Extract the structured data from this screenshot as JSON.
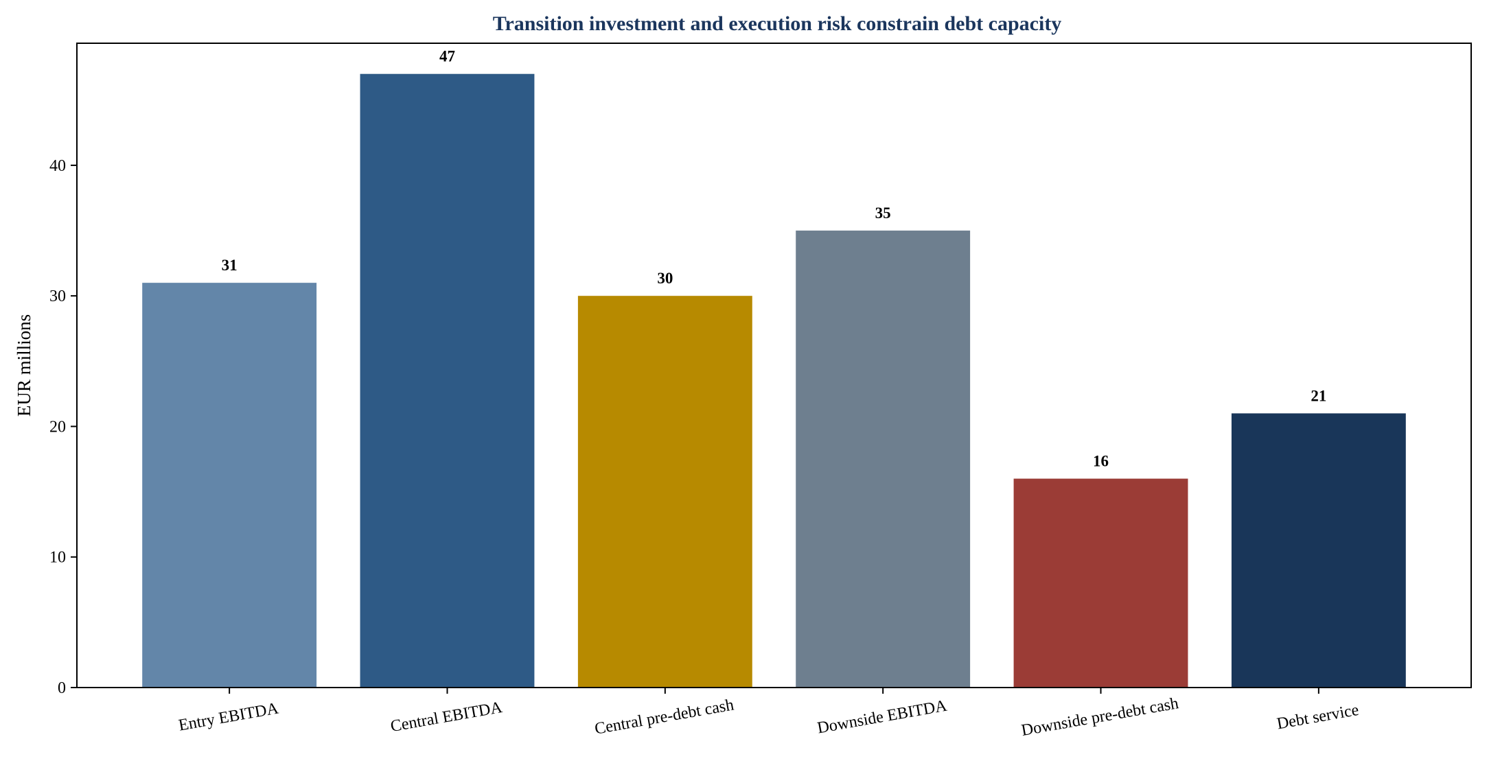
{
  "chart_data": {
    "type": "bar",
    "title": "Transition investment and execution risk constrain debt capacity",
    "ylabel": "EUR millions",
    "xlabel": "",
    "categories": [
      "Entry EBITDA",
      "Central EBITDA",
      "Central pre-debt cash",
      "Downside EBITDA",
      "Downside pre-debt cash",
      "Debt service"
    ],
    "values": [
      31,
      47,
      30,
      35,
      16,
      21
    ],
    "data_labels": [
      "31",
      "47",
      "30",
      "35",
      "16",
      "21"
    ],
    "colors": [
      "#6386a9",
      "#2e5a86",
      "#b78a00",
      "#6e7f8f",
      "#9b3c36",
      "#193659"
    ],
    "ylim": [
      0,
      49.35
    ],
    "yticks": [
      0,
      10,
      20,
      30,
      40
    ],
    "ytick_labels": [
      "0",
      "10",
      "20",
      "30",
      "40"
    ],
    "grid": false,
    "legend": "none",
    "title_color": "#1b365d"
  }
}
